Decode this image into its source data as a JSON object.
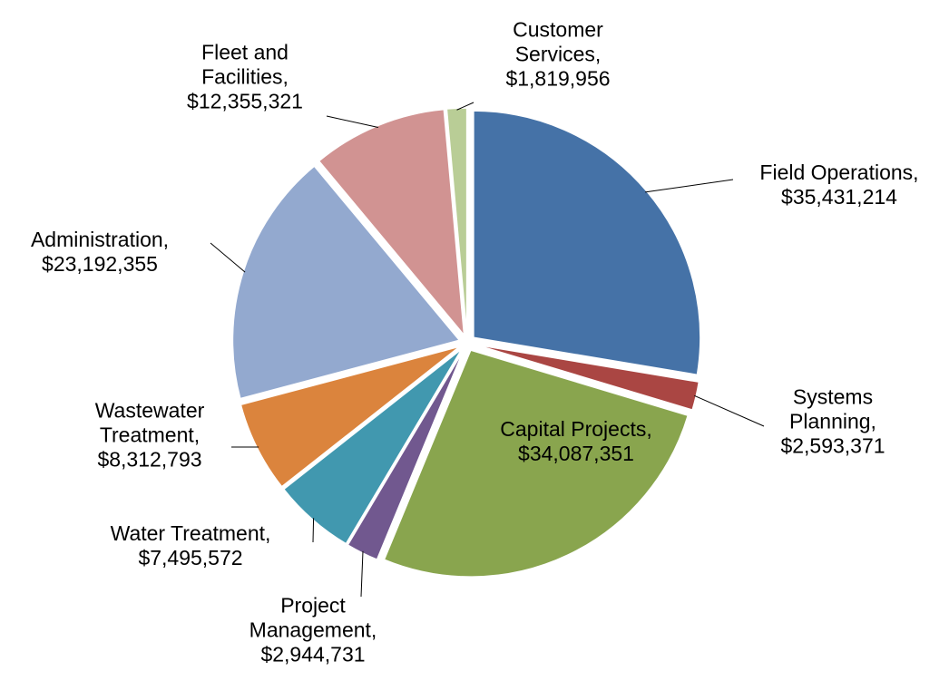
{
  "chart_data": {
    "type": "pie",
    "categories": [
      "Field Operations,",
      "Systems Planning,",
      "Capital Projects,",
      "Project Management,",
      "Water Treatment,",
      "Wastewater Treatment,",
      "Administration,",
      "Fleet and Facilities,",
      "Customer Services,"
    ],
    "values": [
      35431214,
      2593371,
      34087351,
      2944731,
      7495572,
      8312793,
      23192355,
      12355321,
      1819956
    ],
    "value_labels": [
      "$35,431,214",
      "$2,593,371",
      "$34,087,351",
      "$2,944,731",
      "$7,495,572",
      "$8,312,793",
      "$23,192,355",
      "$12,355,321",
      "$1,819,956"
    ],
    "colors": [
      "#4572a7",
      "#aa4643",
      "#89a54e",
      "#71588f",
      "#4198af",
      "#db843d",
      "#93a9cf",
      "#d19392",
      "#b9cd96"
    ],
    "exploded": true
  }
}
